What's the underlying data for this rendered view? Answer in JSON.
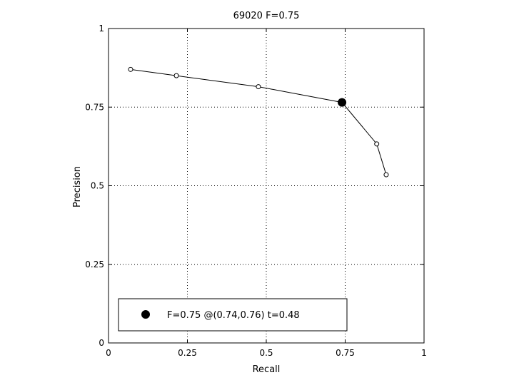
{
  "chart_data": {
    "type": "line",
    "title": "69020 F=0.75",
    "xlabel": "Recall",
    "ylabel": "Precision",
    "xlim": [
      0,
      1
    ],
    "ylim": [
      0,
      1
    ],
    "xticks": [
      "0",
      "0.25",
      "0.5",
      "0.75",
      "1"
    ],
    "yticks": [
      "0",
      "0.25",
      "0.5",
      "0.75",
      "1"
    ],
    "xtick_values": [
      0,
      0.25,
      0.5,
      0.75,
      1
    ],
    "ytick_values": [
      0,
      0.25,
      0.5,
      0.75,
      1
    ],
    "grid": true,
    "series": [
      {
        "x": [
          0.07,
          0.215,
          0.475,
          0.74,
          0.85,
          0.88
        ],
        "y": [
          0.87,
          0.85,
          0.815,
          0.765,
          0.633,
          0.535
        ],
        "marker": "open-circle",
        "color": "#000000"
      }
    ],
    "highlight_point": {
      "x": 0.74,
      "y": 0.765,
      "marker": "filled-circle",
      "color": "#000000"
    },
    "legend": {
      "label": "F=0.75 @(0.74,0.76) t=0.48",
      "placement": "bottom-left"
    }
  }
}
